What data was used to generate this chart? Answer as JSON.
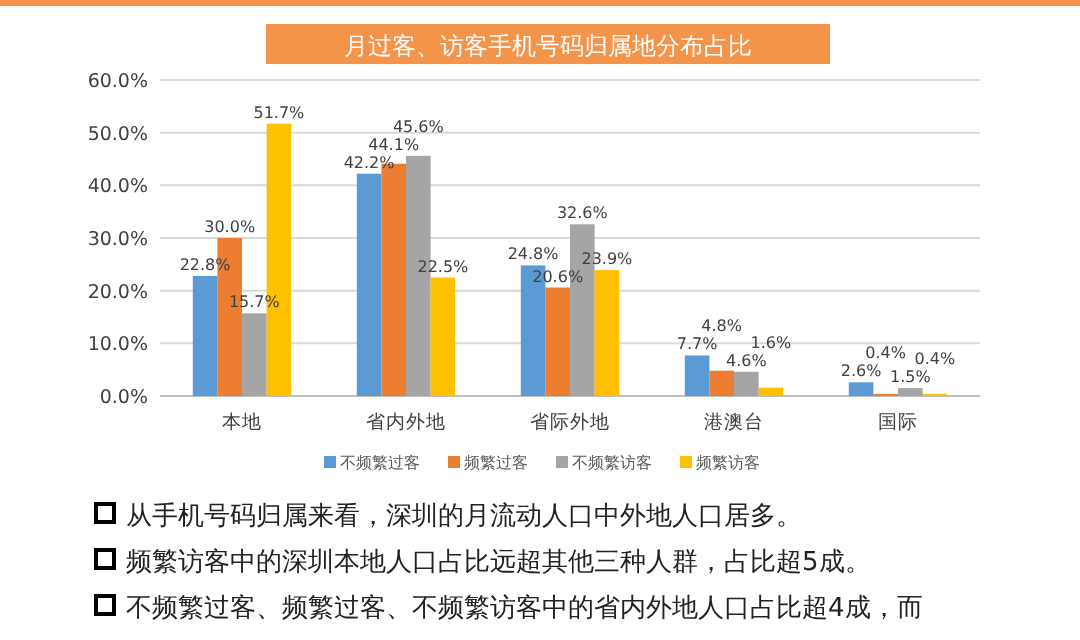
{
  "chart_data": {
    "type": "bar",
    "title": "月过客、访客手机号码归属地分布占比",
    "categories": [
      "本地",
      "省内外地",
      "省际外地",
      "港澳台",
      "国际"
    ],
    "series": [
      {
        "name": "不频繁过客",
        "color": "#5b9bd5",
        "values": [
          22.8,
          42.2,
          24.8,
          7.7,
          2.6
        ],
        "value_labels": [
          "22.8%",
          "42.2%",
          "24.8%",
          "7.7%",
          "2.6%"
        ]
      },
      {
        "name": "频繁过客",
        "color": "#ed7d31",
        "values": [
          30.0,
          44.1,
          20.6,
          4.8,
          0.4
        ],
        "value_labels": [
          "30.0%",
          "44.1%",
          "20.6%",
          "4.8%",
          "0.4%"
        ]
      },
      {
        "name": "不频繁访客",
        "color": "#a5a5a5",
        "values": [
          15.7,
          45.6,
          32.6,
          4.6,
          1.5
        ],
        "value_labels": [
          "15.7%",
          "45.6%",
          "32.6%",
          "4.6%",
          "1.5%"
        ]
      },
      {
        "name": "频繁访客",
        "color": "#ffc000",
        "values": [
          51.7,
          22.5,
          23.9,
          1.6,
          0.4
        ],
        "value_labels": [
          "51.7%",
          "22.5%",
          "23.9%",
          "1.6%",
          "0.4%"
        ]
      }
    ],
    "ylim": [
      0,
      60
    ],
    "yticks": [
      {
        "value": 0,
        "label": "0.0%"
      },
      {
        "value": 10,
        "label": "10.0%"
      },
      {
        "value": 20,
        "label": "20.0%"
      },
      {
        "value": 30,
        "label": "30.0%"
      },
      {
        "value": 40,
        "label": "40.0%"
      },
      {
        "value": 50,
        "label": "50.0%"
      },
      {
        "value": 60,
        "label": "60.0%"
      }
    ],
    "grid": "y",
    "legend": "bottom",
    "annotations": [
      "从手机号码归属来看，深圳的月流动人口中外地人口居多。",
      "频繁访客中的深圳本地人口占比远超其他三种人群，占比超5成。",
      "不频繁过客、频繁过客、不频繁访客中的省内外地人口占比超4成，而"
    ]
  }
}
